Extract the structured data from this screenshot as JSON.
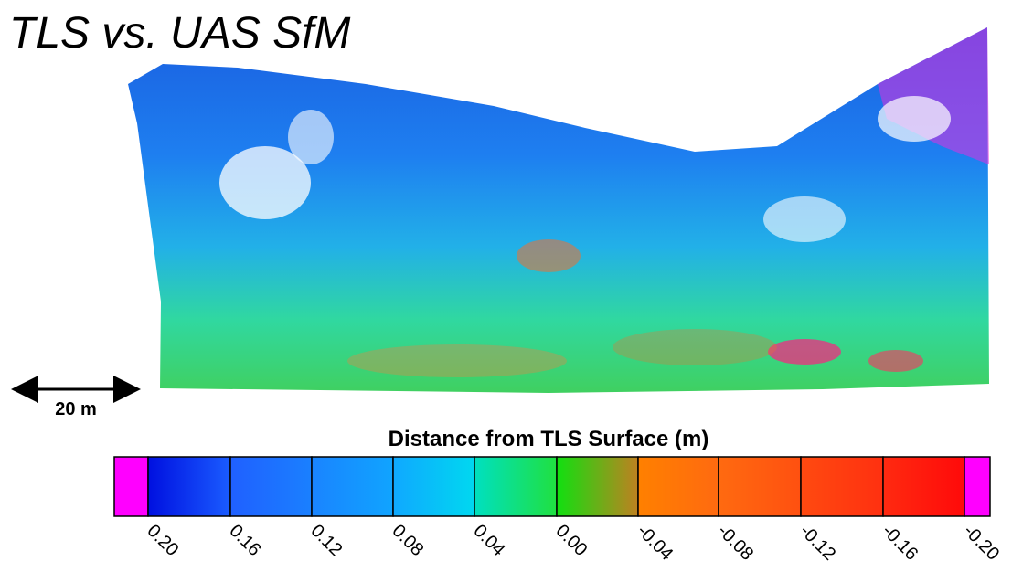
{
  "title": "TLS vs. UAS SfM",
  "scale_bar": {
    "label": "20 m"
  },
  "colorbar": {
    "title": "Distance from TLS Surface (m)",
    "ticks": [
      "0.20",
      "0.16",
      "0.12",
      "0.08",
      "0.04",
      "0.00",
      "-0.04",
      "-0.08",
      "-0.12",
      "-0.16",
      "-0.20"
    ]
  }
}
